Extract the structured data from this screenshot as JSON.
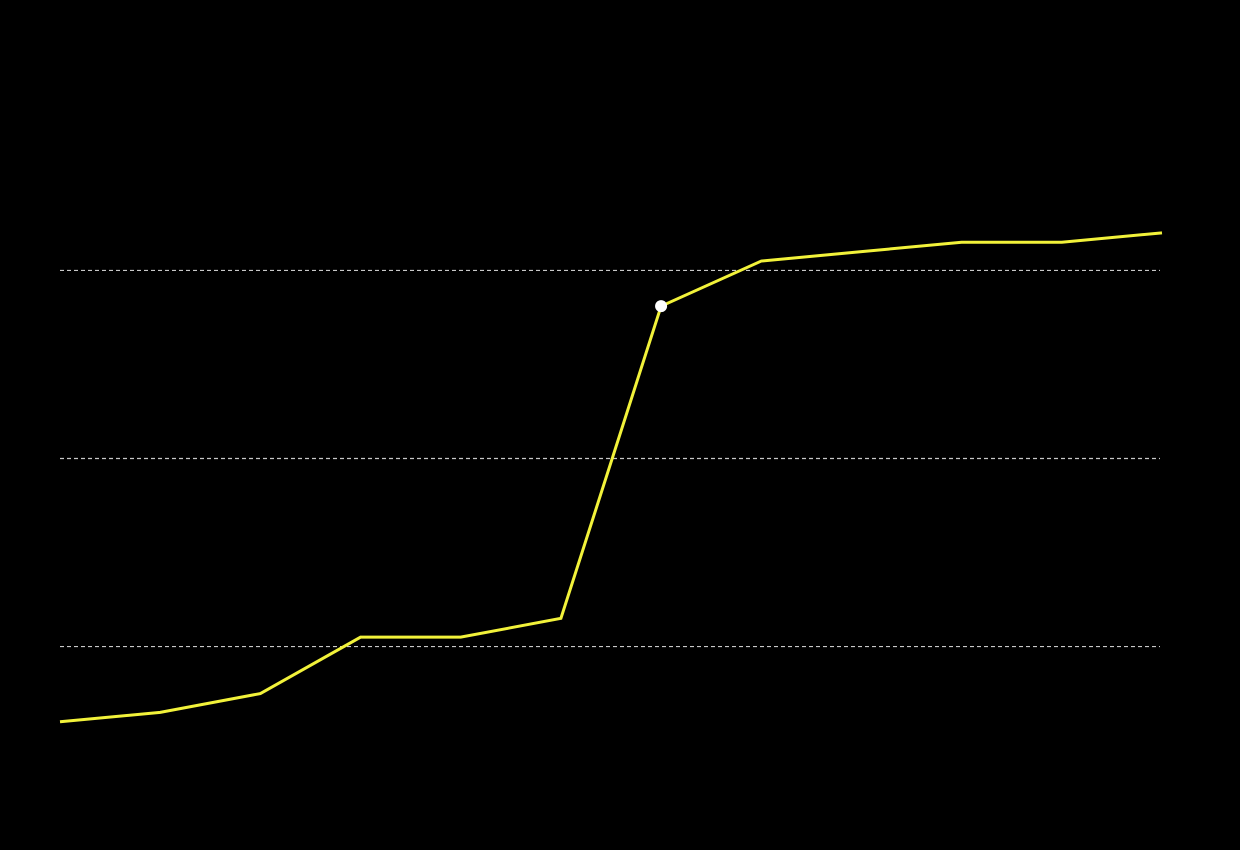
{
  "chart_data": {
    "type": "line",
    "title": "",
    "xlabel": "",
    "ylabel": "",
    "x": [
      0,
      1,
      2,
      3,
      4,
      5,
      6,
      7,
      8,
      9,
      10,
      11
    ],
    "series": [
      {
        "values": [
          -0.4,
          -0.35,
          -0.25,
          0.05,
          0.05,
          0.15,
          1.81,
          2.05,
          2.1,
          2.15,
          2.15,
          2.2
        ],
        "color": "#f2f23a"
      }
    ],
    "highlight": {
      "index": 6,
      "color": "#ffffff"
    },
    "xlim": [
      0,
      11
    ],
    "ylim": [
      -0.8,
      2.8
    ],
    "gridlines": [
      0,
      1,
      2
    ],
    "grid": true,
    "grid_style": "dashed",
    "grid_color": "#c8c8c8",
    "background": "#000000",
    "legend": "none"
  }
}
